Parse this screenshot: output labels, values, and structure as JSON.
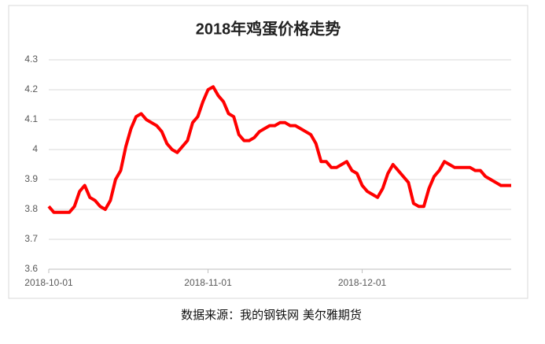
{
  "chart_data": {
    "type": "line",
    "title": "2018年鸡蛋价格走势",
    "categories": [
      "2018-10-01",
      null,
      null,
      null,
      null,
      null,
      null,
      null,
      null,
      null,
      null,
      null,
      null,
      null,
      null,
      null,
      null,
      null,
      null,
      null,
      null,
      null,
      null,
      null,
      null,
      null,
      null,
      null,
      null,
      null,
      null,
      "2018-11-01",
      null,
      null,
      null,
      null,
      null,
      null,
      null,
      null,
      null,
      null,
      null,
      null,
      null,
      null,
      null,
      null,
      null,
      null,
      null,
      null,
      null,
      null,
      null,
      null,
      null,
      null,
      null,
      null,
      null,
      "2018-12-01",
      null,
      null,
      null,
      null,
      null,
      null,
      null,
      null,
      null,
      null,
      null,
      null,
      null,
      null,
      null,
      null,
      null,
      null,
      null,
      null,
      null,
      null,
      null,
      null,
      null,
      null,
      null,
      null,
      null
    ],
    "series": [
      {
        "color": "#ff0000",
        "values": [
          3.81,
          3.79,
          3.79,
          3.79,
          3.79,
          3.81,
          3.86,
          3.88,
          3.84,
          3.83,
          3.81,
          3.8,
          3.83,
          3.9,
          3.93,
          4.01,
          4.07,
          4.11,
          4.12,
          4.1,
          4.09,
          4.08,
          4.06,
          4.02,
          4.0,
          3.99,
          4.01,
          4.03,
          4.09,
          4.11,
          4.16,
          4.2,
          4.21,
          4.18,
          4.16,
          4.12,
          4.11,
          4.05,
          4.03,
          4.03,
          4.04,
          4.06,
          4.07,
          4.08,
          4.08,
          4.09,
          4.09,
          4.08,
          4.08,
          4.07,
          4.06,
          4.05,
          4.02,
          3.96,
          3.96,
          3.94,
          3.94,
          3.95,
          3.96,
          3.93,
          3.92,
          3.88,
          3.86,
          3.85,
          3.84,
          3.87,
          3.92,
          3.95,
          3.93,
          3.91,
          3.89,
          3.82,
          3.81,
          3.81,
          3.87,
          3.91,
          3.93,
          3.96,
          3.95,
          3.94,
          3.94,
          3.94,
          3.94,
          3.93,
          3.93,
          3.91,
          3.9,
          3.89,
          3.88,
          3.88,
          3.88
        ]
      }
    ],
    "ylim": [
      3.6,
      4.3
    ],
    "yticks": [
      3.6,
      3.7,
      3.8,
      3.9,
      4,
      4.1,
      4.2,
      4.3
    ],
    "grid": true,
    "source": "数据来源：我的钢铁网  美尔雅期货"
  }
}
